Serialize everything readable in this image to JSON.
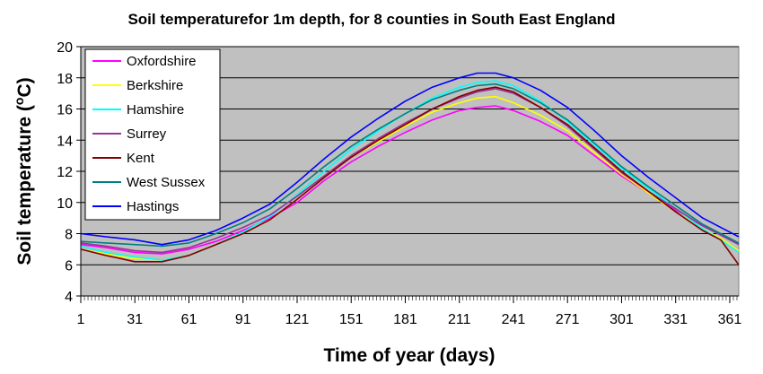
{
  "chart_data": {
    "type": "line",
    "title": "Soil temperaturefor 1m depth, for 8 counties in South East England",
    "xlabel": "Time of year (days)",
    "ylabel_main": "Soil temperature (",
    "ylabel_sup": "o",
    "ylabel_unit": "C)",
    "xlim": [
      1,
      366
    ],
    "ylim": [
      4,
      20
    ],
    "x_ticks": [
      1,
      31,
      61,
      91,
      121,
      151,
      181,
      211,
      241,
      271,
      301,
      331,
      361
    ],
    "y_ticks": [
      4,
      6,
      8,
      10,
      12,
      14,
      16,
      18,
      20
    ],
    "grid": "horizontal",
    "legend_position": "top-left",
    "plot_background": "#c0c0c0",
    "series": [
      {
        "name": "Oxfordshire",
        "color": "#ff00ff",
        "x": [
          1,
          15,
          31,
          46,
          61,
          76,
          91,
          106,
          121,
          136,
          151,
          166,
          181,
          196,
          211,
          221,
          231,
          241,
          256,
          271,
          286,
          301,
          316,
          331,
          346,
          356,
          366
        ],
        "y": [
          7.3,
          7.1,
          6.8,
          6.7,
          7.0,
          7.5,
          8.2,
          9.0,
          10.0,
          11.4,
          12.6,
          13.6,
          14.5,
          15.3,
          15.9,
          16.1,
          16.2,
          15.9,
          15.2,
          14.3,
          13.0,
          11.7,
          10.6,
          9.5,
          8.5,
          8.0,
          7.3
        ]
      },
      {
        "name": "Berkshire",
        "color": "#ffff00",
        "x": [
          1,
          15,
          31,
          46,
          61,
          76,
          91,
          106,
          121,
          136,
          151,
          166,
          181,
          196,
          211,
          221,
          231,
          241,
          256,
          271,
          286,
          301,
          316,
          331,
          346,
          356,
          366
        ],
        "y": [
          7.0,
          6.7,
          6.4,
          6.3,
          6.6,
          7.3,
          8.0,
          8.9,
          10.2,
          11.6,
          12.9,
          13.9,
          14.9,
          15.8,
          16.4,
          16.7,
          16.8,
          16.4,
          15.6,
          14.6,
          13.2,
          11.8,
          10.6,
          9.4,
          8.3,
          7.7,
          6.9
        ]
      },
      {
        "name": "Hamshire",
        "color": "#00ffff",
        "x": [
          1,
          15,
          31,
          46,
          61,
          76,
          91,
          106,
          121,
          136,
          151,
          166,
          181,
          196,
          211,
          221,
          231,
          241,
          256,
          271,
          286,
          301,
          316,
          331,
          346,
          356,
          366
        ],
        "y": [
          7.2,
          6.8,
          6.5,
          6.3,
          6.6,
          7.3,
          8.1,
          9.1,
          10.5,
          12.0,
          13.4,
          14.6,
          15.7,
          16.7,
          17.4,
          17.7,
          17.8,
          17.5,
          16.5,
          15.2,
          13.7,
          12.2,
          10.9,
          9.6,
          8.3,
          7.6,
          6.8
        ]
      },
      {
        "name": "Surrey",
        "color": "#993399",
        "x": [
          1,
          15,
          31,
          46,
          61,
          76,
          91,
          106,
          121,
          136,
          151,
          166,
          181,
          196,
          211,
          221,
          231,
          241,
          256,
          271,
          286,
          301,
          316,
          331,
          346,
          356,
          366
        ],
        "y": [
          7.4,
          7.2,
          6.9,
          6.8,
          7.1,
          7.7,
          8.4,
          9.2,
          10.4,
          11.7,
          13.0,
          14.1,
          15.1,
          16.0,
          16.7,
          17.1,
          17.3,
          17.0,
          16.1,
          14.9,
          13.4,
          11.9,
          10.7,
          9.6,
          8.5,
          7.9,
          7.3
        ]
      },
      {
        "name": "Kent",
        "color": "#800000",
        "x": [
          1,
          15,
          31,
          46,
          61,
          76,
          91,
          106,
          121,
          136,
          151,
          166,
          181,
          196,
          211,
          221,
          231,
          241,
          256,
          271,
          286,
          301,
          316,
          331,
          346,
          356,
          366
        ],
        "y": [
          7.0,
          6.6,
          6.2,
          6.2,
          6.6,
          7.3,
          8.0,
          8.9,
          10.2,
          11.6,
          12.9,
          14.0,
          15.0,
          16.0,
          16.8,
          17.2,
          17.4,
          17.1,
          16.1,
          15.0,
          13.5,
          12.0,
          10.7,
          9.4,
          8.2,
          7.6,
          6.0
        ]
      },
      {
        "name": "West Sussex",
        "color": "#008080",
        "x": [
          1,
          15,
          31,
          46,
          61,
          76,
          91,
          106,
          121,
          136,
          151,
          166,
          181,
          196,
          211,
          221,
          231,
          241,
          256,
          271,
          286,
          301,
          316,
          331,
          346,
          356,
          366
        ],
        "y": [
          7.5,
          7.4,
          7.3,
          7.2,
          7.4,
          8.0,
          8.7,
          9.6,
          10.9,
          12.3,
          13.6,
          14.7,
          15.7,
          16.6,
          17.2,
          17.5,
          17.6,
          17.3,
          16.4,
          15.3,
          13.8,
          12.3,
          11.0,
          9.8,
          8.6,
          8.0,
          7.4
        ]
      },
      {
        "name": "Hastings",
        "color": "#0000ff",
        "x": [
          1,
          15,
          31,
          46,
          61,
          76,
          91,
          106,
          121,
          136,
          151,
          166,
          181,
          196,
          211,
          221,
          231,
          241,
          256,
          271,
          286,
          301,
          316,
          331,
          346,
          356,
          366
        ],
        "y": [
          8.0,
          7.8,
          7.6,
          7.3,
          7.6,
          8.2,
          9.0,
          9.9,
          11.3,
          12.8,
          14.2,
          15.4,
          16.5,
          17.4,
          18.0,
          18.3,
          18.3,
          18.0,
          17.2,
          16.1,
          14.6,
          13.0,
          11.6,
          10.3,
          9.0,
          8.4,
          7.8
        ]
      }
    ]
  }
}
